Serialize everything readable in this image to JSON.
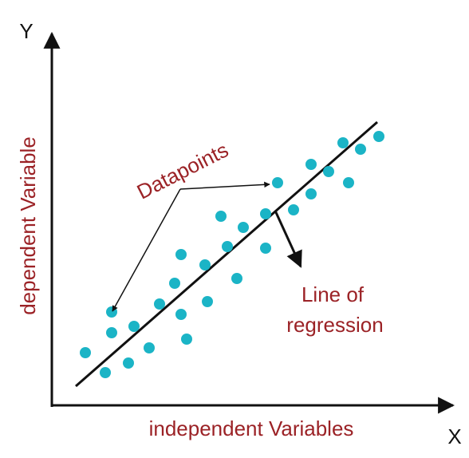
{
  "axes": {
    "y_letter": "Y",
    "x_letter": "X",
    "y_label": "dependent Variable",
    "x_label": "independent Variables"
  },
  "annotations": {
    "datapoints": "Datapoints",
    "line_of_regression": [
      "Line of",
      "regression"
    ]
  }
}
